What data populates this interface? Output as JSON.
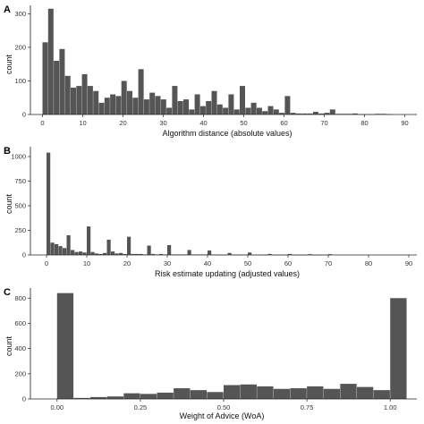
{
  "chart_data": [
    {
      "type": "bar",
      "panel_label": "A",
      "xlabel": "Algorithm distance (absolute values)",
      "ylabel": "count",
      "xlim": [
        -3,
        93
      ],
      "ylim": [
        0,
        325
      ],
      "x_ticks": [
        0,
        10,
        20,
        30,
        40,
        50,
        60,
        70,
        80,
        90
      ],
      "y_ticks": [
        0,
        100,
        200,
        300
      ],
      "bin_width": 1.4,
      "x": [
        0,
        1.4,
        2.8,
        4.2,
        5.6,
        7,
        8.4,
        9.8,
        11.2,
        12.6,
        14,
        15.4,
        16.8,
        18.2,
        19.6,
        21,
        22.4,
        23.8,
        25.2,
        26.6,
        28,
        29.4,
        30.8,
        32.2,
        33.6,
        35,
        36.4,
        37.8,
        39.2,
        40.6,
        42,
        43.4,
        44.8,
        46.2,
        47.6,
        49,
        50.4,
        51.8,
        53.2,
        54.6,
        56,
        57.4,
        58.8,
        60.2,
        61.6,
        63,
        64.4,
        65.8,
        67.2,
        68.6,
        70,
        71.4,
        72.8,
        74.2,
        75.6,
        77,
        78.4,
        79.8,
        81.2,
        82.6,
        84,
        85.4
      ],
      "values": [
        215,
        315,
        160,
        195,
        115,
        80,
        85,
        120,
        85,
        70,
        35,
        50,
        60,
        55,
        100,
        70,
        50,
        135,
        45,
        65,
        55,
        45,
        20,
        85,
        40,
        45,
        15,
        60,
        25,
        40,
        70,
        30,
        20,
        60,
        15,
        85,
        20,
        35,
        20,
        10,
        25,
        15,
        5,
        55,
        5,
        3,
        3,
        3,
        8,
        3,
        5,
        15,
        2,
        2,
        2,
        3,
        1,
        1,
        1,
        2,
        2,
        1
      ]
    },
    {
      "type": "bar",
      "panel_label": "B",
      "xlabel": "Risk estimate updating (adjusted values)",
      "ylabel": "count",
      "xlim": [
        -4,
        92
      ],
      "ylim": [
        0,
        1100
      ],
      "x_ticks": [
        0,
        10,
        20,
        30,
        40,
        50,
        60,
        70,
        80,
        90
      ],
      "y_ticks": [
        0,
        250,
        500,
        750,
        1000
      ],
      "bin_width": 1.0,
      "x": [
        0,
        1,
        2,
        3,
        4,
        5,
        6,
        7,
        8,
        9,
        10,
        11,
        12,
        13,
        14,
        15,
        16,
        17,
        18,
        19,
        20,
        21,
        22,
        23,
        24,
        25,
        26,
        27,
        28,
        29,
        30,
        31,
        32,
        33,
        34,
        35,
        36,
        37,
        38,
        39,
        40,
        41,
        42,
        43,
        44,
        45,
        46,
        47,
        48,
        49,
        50,
        51,
        52,
        53,
        54,
        55,
        56,
        57,
        58,
        59,
        60,
        61,
        62,
        63,
        64,
        65,
        66,
        67,
        68,
        69,
        70
      ],
      "values": [
        1040,
        125,
        110,
        90,
        70,
        200,
        50,
        30,
        35,
        25,
        290,
        30,
        15,
        10,
        20,
        155,
        35,
        15,
        20,
        10,
        185,
        10,
        10,
        10,
        5,
        95,
        10,
        5,
        10,
        5,
        100,
        5,
        5,
        5,
        5,
        50,
        5,
        5,
        5,
        5,
        45,
        3,
        3,
        3,
        3,
        20,
        3,
        3,
        3,
        3,
        25,
        2,
        2,
        2,
        2,
        10,
        2,
        2,
        2,
        2,
        10,
        1,
        1,
        1,
        1,
        8,
        1,
        1,
        1,
        1,
        8
      ]
    },
    {
      "type": "bar",
      "panel_label": "C",
      "xlabel": "Weight of Advice (WoA)",
      "ylabel": "count",
      "xlim": [
        -0.08,
        1.08
      ],
      "ylim": [
        0,
        880
      ],
      "x_ticks": [
        "0.00",
        "0.25",
        "0.50",
        "0.75",
        "1.00"
      ],
      "y_ticks": [
        0,
        200,
        400,
        600,
        800
      ],
      "bin_width": 0.05,
      "x": [
        0,
        0.05,
        0.1,
        0.15,
        0.2,
        0.25,
        0.3,
        0.35,
        0.4,
        0.45,
        0.5,
        0.55,
        0.6,
        0.65,
        0.7,
        0.75,
        0.8,
        0.85,
        0.9,
        0.95,
        1.0
      ],
      "values": [
        840,
        8,
        15,
        20,
        45,
        40,
        50,
        85,
        70,
        55,
        110,
        115,
        100,
        80,
        85,
        100,
        80,
        120,
        95,
        70,
        800
      ]
    }
  ]
}
